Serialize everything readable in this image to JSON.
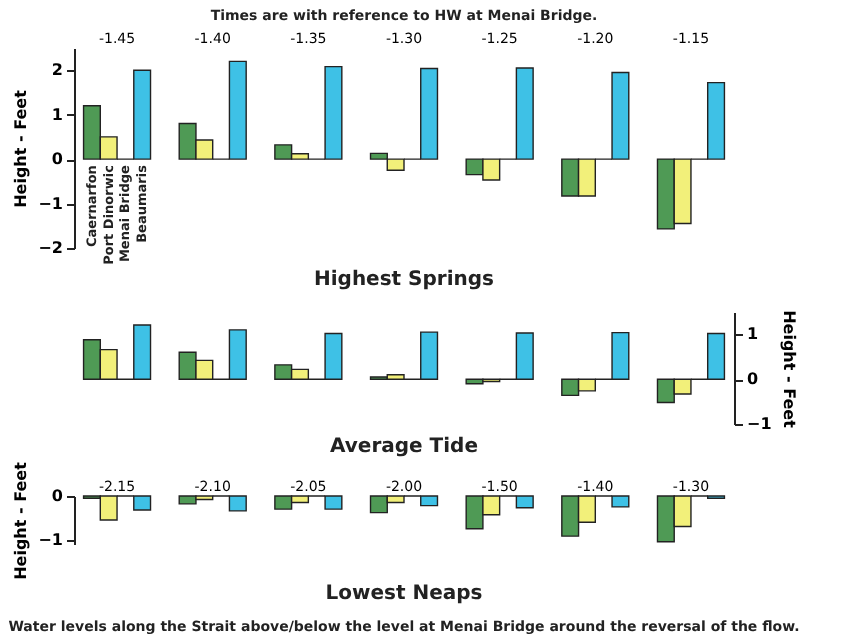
{
  "chart_data": [
    {
      "type": "bar",
      "title": "Times are with reference to HW at Menai Bridge.",
      "xlabel": "Highest Springs",
      "ylabel": "Height - Feet",
      "categories": [
        "-1.45",
        "-1.40",
        "-1.35",
        "-1.30",
        "-1.25",
        "-1.20",
        "-1.15"
      ],
      "ylim": [
        -2,
        2.5
      ],
      "yticks": [
        -2,
        -1,
        0,
        1,
        2
      ],
      "grid": false,
      "series": [
        {
          "name": "Caernarfon",
          "color": "#4f9a55",
          "values": [
            1.2,
            0.8,
            0.32,
            0.13,
            -0.35,
            -0.83,
            -1.57
          ]
        },
        {
          "name": "Port Dinorwic",
          "color": "#f2f07a",
          "values": [
            0.5,
            0.43,
            0.12,
            -0.25,
            -0.47,
            -0.83,
            -1.45
          ]
        },
        {
          "name": "Menai Bridge",
          "color": "#222222",
          "values": [
            0,
            0,
            0,
            0,
            0,
            0,
            0
          ]
        },
        {
          "name": "Beaumaris",
          "color": "#3ec1e6",
          "values": [
            2.0,
            2.2,
            2.08,
            2.04,
            2.05,
            1.95,
            1.72
          ]
        }
      ]
    },
    {
      "type": "bar",
      "xlabel": "Average Tide",
      "y2label": "Height - Feet",
      "categories": [
        null,
        null,
        null,
        null,
        null,
        null,
        null
      ],
      "y2lim": [
        -1,
        1.5
      ],
      "y2ticks": [
        -1,
        0,
        1
      ],
      "grid": false,
      "series": [
        {
          "color": "#4f9a55",
          "axis": "y2",
          "values": [
            0.88,
            0.6,
            0.32,
            0.05,
            -0.1,
            -0.36,
            -0.52
          ]
        },
        {
          "color": "#f2f07a",
          "axis": "y2",
          "values": [
            0.66,
            0.42,
            0.22,
            0.1,
            -0.05,
            -0.26,
            -0.33
          ]
        },
        {
          "color": "#222222",
          "axis": "y2",
          "values": [
            0,
            0,
            0,
            0,
            0,
            0,
            0
          ]
        },
        {
          "color": "#3ec1e6",
          "axis": "y2",
          "values": [
            1.21,
            1.1,
            1.02,
            1.05,
            1.03,
            1.04,
            1.02
          ]
        }
      ]
    },
    {
      "type": "bar",
      "xlabel": "Lowest Neaps",
      "ylabel": "Height - Feet",
      "categories": [
        "-2.15",
        "-2.10",
        "-2.05",
        "-2.00",
        "-1.50",
        "-1.40",
        "-1.30"
      ],
      "ylim": [
        -1.1,
        0
      ],
      "yticks": [
        -1,
        0
      ],
      "grid": false,
      "annotations": [
        "Water levels along the Strait above/below the level at Menai Bridge around the reversal of the flow."
      ],
      "series": [
        {
          "color": "#4f9a55",
          "values": [
            -0.05,
            -0.18,
            -0.3,
            -0.38,
            -0.75,
            -0.92,
            -1.05
          ]
        },
        {
          "color": "#f2f07a",
          "values": [
            -0.55,
            -0.08,
            -0.15,
            -0.15,
            -0.43,
            -0.6,
            -0.7
          ]
        },
        {
          "color": "#222222",
          "values": [
            0,
            0,
            0,
            0,
            0,
            0,
            0
          ]
        },
        {
          "color": "#3ec1e6",
          "values": [
            -0.32,
            -0.34,
            -0.3,
            -0.22,
            -0.27,
            -0.25,
            -0.05
          ]
        }
      ]
    }
  ]
}
